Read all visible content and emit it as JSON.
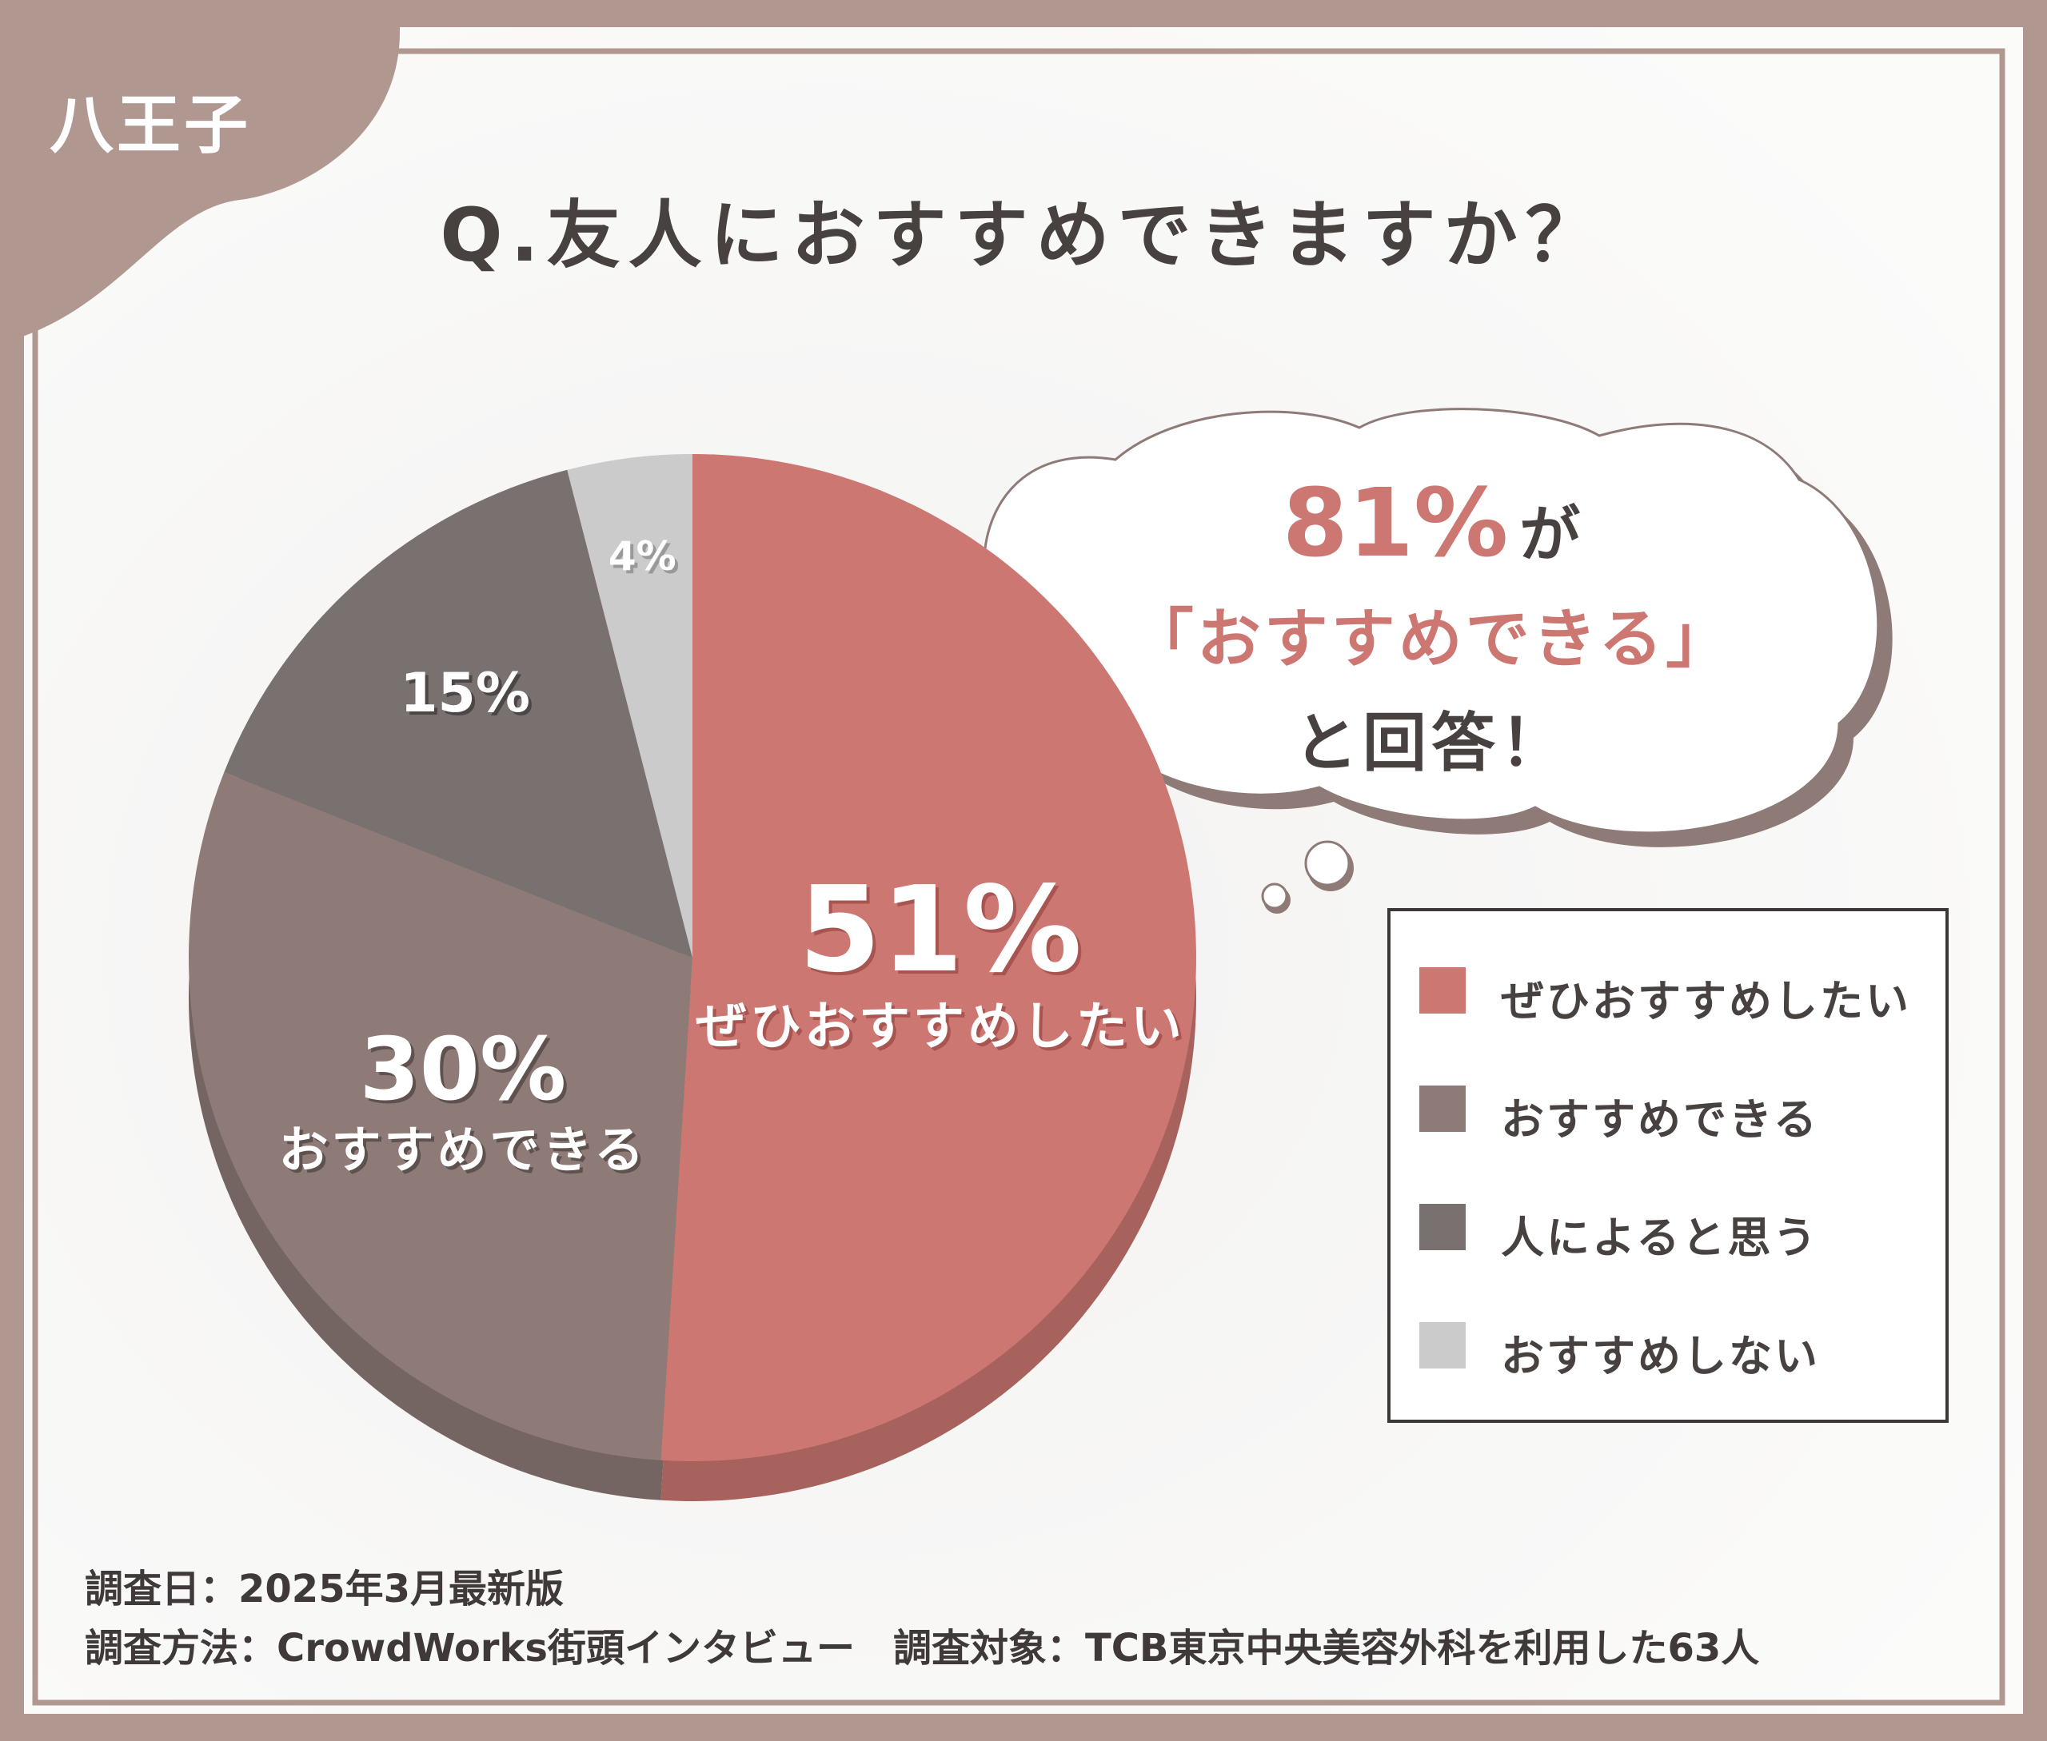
{
  "region_badge": "八王子",
  "title": "Q.友人におすすめできますか？",
  "callout": {
    "percent": "81%",
    "particle": "が",
    "quote": "「おすすめできる」",
    "suffix": "と回答！"
  },
  "colors": {
    "frame": "#b09891",
    "accent": "#cd7772",
    "text_dark": "#474140"
  },
  "chart_data": {
    "type": "pie",
    "categories": [
      "ぜひおすすめしたい",
      "おすすめできる",
      "人によると思う",
      "おすすめしない"
    ],
    "values": [
      51,
      30,
      15,
      4
    ],
    "value_labels": [
      "51%",
      "30%",
      "15%",
      "4%"
    ],
    "slice_captions": [
      "ぜひおすすめしたい",
      "おすすめできる",
      "",
      ""
    ],
    "colors": [
      "#cd7772",
      "#8e7b78",
      "#787170",
      "#cccbcb"
    ],
    "legend_position": "right"
  },
  "legend": [
    {
      "label": "ぜひおすすめしたい",
      "color": "#cd7772"
    },
    {
      "label": "おすすめできる",
      "color": "#8e7b78"
    },
    {
      "label": "人によると思う",
      "color": "#787170"
    },
    {
      "label": "おすすめしない",
      "color": "#cccbcb"
    }
  ],
  "footer": {
    "survey_date": "調査日：2025年3月最新版",
    "survey_method": "調査方法：CrowdWorks街頭インタビュー　調査対象：TCB東京中央美容外科を利用した63人"
  }
}
